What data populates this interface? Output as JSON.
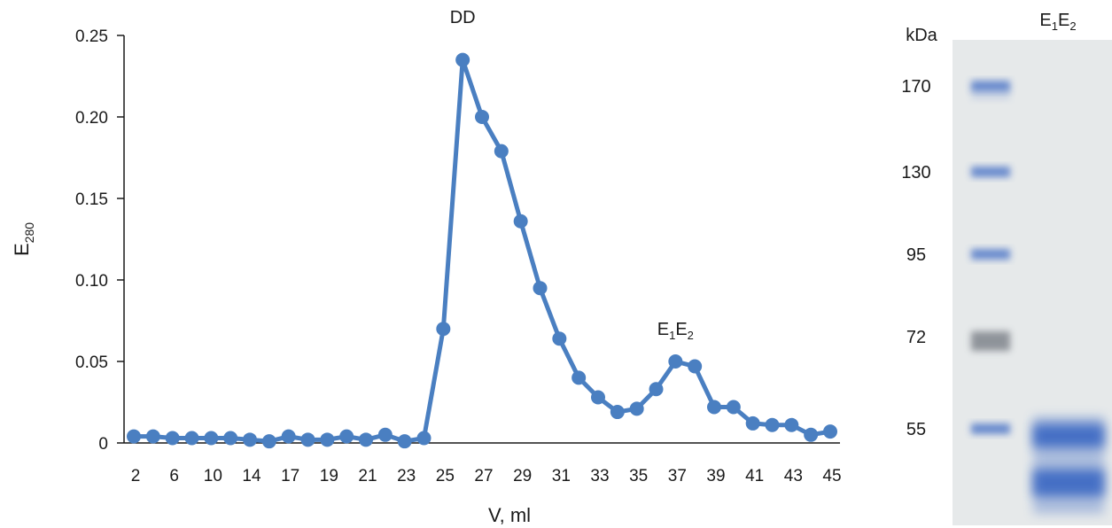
{
  "chart_data": {
    "type": "line",
    "xlabel": "V, ml",
    "ylabel": "E",
    "ylabel_sub": "280",
    "ylim": [
      0,
      0.25
    ],
    "yticks": [
      "0",
      "0.05",
      "0.10",
      "0.15",
      "0.20",
      "0.25"
    ],
    "xticks": [
      "2",
      "6",
      "10",
      "14",
      "17",
      "19",
      "21",
      "23",
      "25",
      "27",
      "29",
      "31",
      "33",
      "35",
      "37",
      "39",
      "41",
      "43",
      "45"
    ],
    "series_color": "#4a7fc1",
    "values": [
      0.004,
      0.004,
      0.003,
      0.003,
      0.003,
      0.003,
      0.002,
      0.001,
      0.004,
      0.002,
      0.002,
      0.004,
      0.002,
      0.005,
      0.001,
      0.003,
      0.07,
      0.235,
      0.2,
      0.179,
      0.136,
      0.095,
      0.064,
      0.04,
      0.028,
      0.019,
      0.021,
      0.033,
      0.05,
      0.047,
      0.022,
      0.022,
      0.012,
      0.011,
      0.011,
      0.005,
      0.007
    ],
    "annotations": [
      {
        "text": "DD",
        "at_index": 17
      },
      {
        "text": "E",
        "sub1": "1",
        "text2": "E",
        "sub2": "2",
        "at_index": 28
      }
    ]
  },
  "gel": {
    "unit_label": "kDa",
    "lane_label": {
      "text": "E",
      "sub1": "1",
      "text2": "E",
      "sub2": "2"
    },
    "markers": [
      "170",
      "130",
      "95",
      "72",
      "55"
    ],
    "background_color": "#e6e9ea",
    "band_color": "#3f6cc4"
  }
}
